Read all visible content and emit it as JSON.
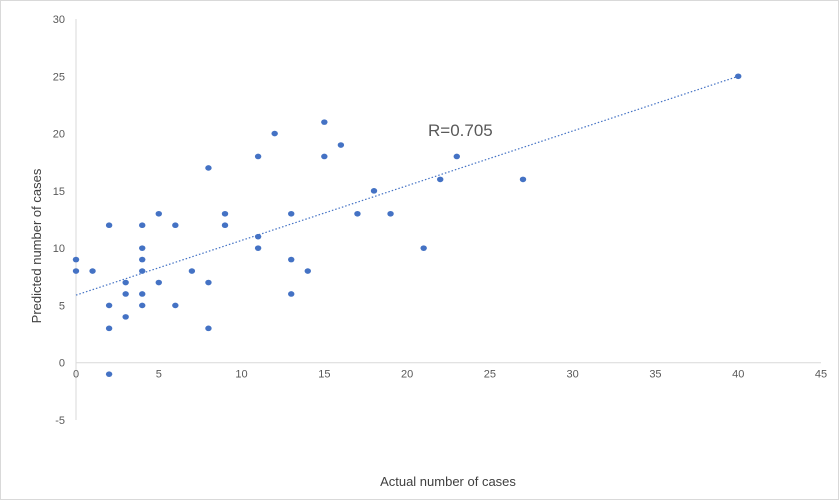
{
  "chart_data": {
    "type": "scatter",
    "title": "",
    "xlabel": "Actual number of cases",
    "ylabel": "Predicted number of cases",
    "xlim": [
      0,
      45
    ],
    "ylim": [
      -5,
      30
    ],
    "x_ticks": [
      0,
      5,
      10,
      15,
      20,
      25,
      30,
      35,
      40,
      45
    ],
    "y_ticks": [
      -5,
      0,
      5,
      10,
      15,
      20,
      25,
      30
    ],
    "grid": false,
    "legend": "none",
    "annotation": "R=0.705",
    "point_color": "#4472c4",
    "trendline": {
      "type": "linear",
      "style": "dotted",
      "color": "#4472c4",
      "from": [
        0,
        5.9
      ],
      "to": [
        40,
        25
      ]
    },
    "points": [
      [
        0,
        9
      ],
      [
        0,
        8
      ],
      [
        1,
        8
      ],
      [
        2,
        12
      ],
      [
        2,
        5
      ],
      [
        2,
        3
      ],
      [
        2,
        -1
      ],
      [
        3,
        7
      ],
      [
        3,
        6
      ],
      [
        3,
        4
      ],
      [
        4,
        12
      ],
      [
        4,
        10
      ],
      [
        4,
        9
      ],
      [
        4,
        8
      ],
      [
        4,
        6
      ],
      [
        4,
        5
      ],
      [
        5,
        13
      ],
      [
        5,
        7
      ],
      [
        6,
        12
      ],
      [
        6,
        5
      ],
      [
        7,
        8
      ],
      [
        8,
        17
      ],
      [
        8,
        7
      ],
      [
        8,
        3
      ],
      [
        9,
        13
      ],
      [
        9,
        12
      ],
      [
        11,
        18
      ],
      [
        11,
        11
      ],
      [
        11,
        10
      ],
      [
        12,
        20
      ],
      [
        13,
        13
      ],
      [
        13,
        9
      ],
      [
        13,
        6
      ],
      [
        14,
        8
      ],
      [
        15,
        21
      ],
      [
        15,
        18
      ],
      [
        16,
        19
      ],
      [
        17,
        13
      ],
      [
        18,
        15
      ],
      [
        19,
        13
      ],
      [
        21,
        10
      ],
      [
        22,
        16
      ],
      [
        23,
        18
      ],
      [
        27,
        16
      ],
      [
        40,
        25
      ]
    ]
  }
}
